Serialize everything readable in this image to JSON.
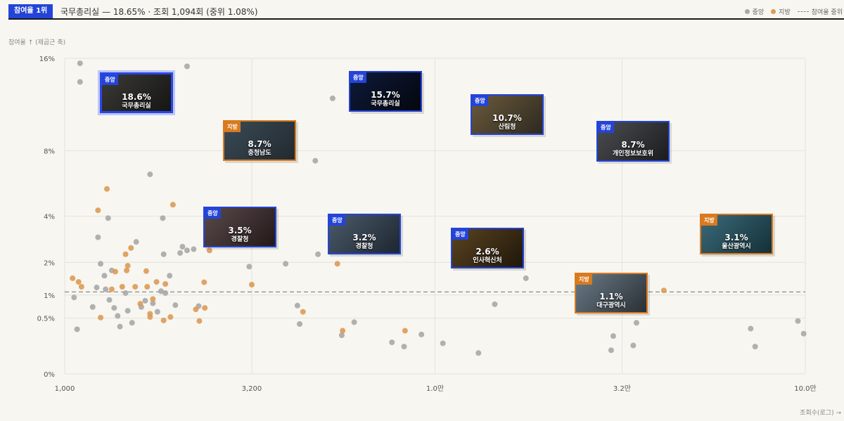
{
  "header": {
    "rank_badge": "참여율 1위",
    "rank_detail": "국무총리실 — 18.65% · 조회 1,094회 (중위 1.08%)"
  },
  "legend": {
    "central": "중앙",
    "regional": "지방",
    "median": "참여율 중위"
  },
  "colors": {
    "central": "#a9a9a9",
    "regional": "#dd9a55",
    "accent": "#2444d8",
    "regional_border": "#d97a1f"
  },
  "chart_data": {
    "type": "scatter",
    "xlabel": "조회수(로그) →",
    "ylabel": "참여율 ↑ (제곱근 축)",
    "x_scale": "log",
    "y_scale": "sqrt",
    "xlim": [
      1000,
      100000
    ],
    "ylim": [
      0,
      16
    ],
    "x_ticks": [
      {
        "value": 1000,
        "label": "1,000"
      },
      {
        "value": 3200,
        "label": "3,200"
      },
      {
        "value": 10000,
        "label": "1.0만"
      },
      {
        "value": 32000,
        "label": "3.2만"
      },
      {
        "value": 100000,
        "label": "10.0만"
      }
    ],
    "y_ticks": [
      {
        "value": 0,
        "label": "0%"
      },
      {
        "value": 0.5,
        "label": "0.5%"
      },
      {
        "value": 1,
        "label": "1%"
      },
      {
        "value": 2,
        "label": "2%"
      },
      {
        "value": 4,
        "label": "4%"
      },
      {
        "value": 8,
        "label": "8%"
      },
      {
        "value": 16,
        "label": "16%"
      }
    ],
    "grid": true,
    "median_line": 1.08,
    "series": [
      {
        "name": "중앙",
        "points": [
          [
            1100,
            15.5
          ],
          [
            1100,
            13.7
          ],
          [
            2140,
            15.2
          ],
          [
            1060,
            0.94
          ],
          [
            1080,
            0.32
          ],
          [
            1230,
            3.0
          ],
          [
            1310,
            3.9
          ],
          [
            1190,
            0.72
          ],
          [
            1220,
            1.2
          ],
          [
            1250,
            1.95
          ],
          [
            1280,
            1.55
          ],
          [
            1290,
            1.15
          ],
          [
            1320,
            0.88
          ],
          [
            1340,
            1.72
          ],
          [
            1360,
            0.7
          ],
          [
            1390,
            0.54
          ],
          [
            1410,
            0.36
          ],
          [
            1460,
            1.05
          ],
          [
            1480,
            0.64
          ],
          [
            1520,
            0.42
          ],
          [
            1560,
            2.8
          ],
          [
            1610,
            0.72
          ],
          [
            1650,
            0.86
          ],
          [
            1700,
            6.4
          ],
          [
            1730,
            0.8
          ],
          [
            1780,
            0.62
          ],
          [
            1820,
            1.1
          ],
          [
            1840,
            3.9
          ],
          [
            1850,
            2.3
          ],
          [
            1870,
            1.05
          ],
          [
            1920,
            1.55
          ],
          [
            1990,
            0.76
          ],
          [
            2050,
            2.35
          ],
          [
            2080,
            2.6
          ],
          [
            2140,
            2.45
          ],
          [
            2230,
            2.5
          ],
          [
            2300,
            0.74
          ],
          [
            3150,
            1.85
          ],
          [
            3950,
            1.95
          ],
          [
            4250,
            0.75
          ],
          [
            4310,
            0.4
          ],
          [
            4750,
            7.3
          ],
          [
            4830,
            2.3
          ],
          [
            5290,
            12.2
          ],
          [
            5600,
            0.24
          ],
          [
            6050,
            0.43
          ],
          [
            7650,
            0.16
          ],
          [
            8250,
            0.12
          ],
          [
            9190,
            0.25
          ],
          [
            10500,
            0.15
          ],
          [
            13100,
            0.07
          ],
          [
            14500,
            0.78
          ],
          [
            17600,
            1.47
          ],
          [
            29900,
            0.09
          ],
          [
            30300,
            0.23
          ],
          [
            34300,
            0.13
          ],
          [
            35000,
            0.42
          ],
          [
            71200,
            0.33
          ],
          [
            73200,
            0.12
          ],
          [
            95500,
            0.45
          ],
          [
            99000,
            0.26
          ]
        ]
      },
      {
        "name": "지방",
        "points": [
          [
            1050,
            1.47
          ],
          [
            1090,
            1.36
          ],
          [
            1110,
            1.22
          ],
          [
            1230,
            4.3
          ],
          [
            1250,
            0.51
          ],
          [
            1300,
            5.5
          ],
          [
            1340,
            1.15
          ],
          [
            1370,
            1.68
          ],
          [
            1430,
            1.22
          ],
          [
            1460,
            2.3
          ],
          [
            1470,
            1.72
          ],
          [
            1480,
            1.88
          ],
          [
            1510,
            2.55
          ],
          [
            1550,
            1.22
          ],
          [
            1600,
            0.79
          ],
          [
            1660,
            1.7
          ],
          [
            1670,
            1.22
          ],
          [
            1700,
            0.52
          ],
          [
            1700,
            0.58
          ],
          [
            1730,
            0.9
          ],
          [
            1770,
            1.36
          ],
          [
            1850,
            0.46
          ],
          [
            1870,
            1.3
          ],
          [
            1930,
            0.52
          ],
          [
            1960,
            4.6
          ],
          [
            2260,
            0.67
          ],
          [
            2310,
            0.45
          ],
          [
            2380,
            1.35
          ],
          [
            2390,
            0.7
          ],
          [
            2460,
            2.45
          ],
          [
            3200,
            1.28
          ],
          [
            4400,
            0.62
          ],
          [
            5450,
            1.95
          ],
          [
            5630,
            0.3
          ],
          [
            8300,
            0.3
          ],
          [
            41500,
            1.12
          ]
        ]
      }
    ],
    "highlights": [
      {
        "group": "중앙",
        "label": "국무총리실",
        "value": "18.6%",
        "top": true
      },
      {
        "group": "중앙",
        "label": "국무총리실",
        "value": "15.7%"
      },
      {
        "group": "중앙",
        "label": "산림청",
        "value": "10.7%"
      },
      {
        "group": "지방",
        "label": "충청남도",
        "value": "8.7%"
      },
      {
        "group": "중앙",
        "label": "개인정보보호위",
        "value": "8.7%"
      },
      {
        "group": "중앙",
        "label": "경찰청",
        "value": "3.5%"
      },
      {
        "group": "중앙",
        "label": "경찰청",
        "value": "3.2%"
      },
      {
        "group": "지방",
        "label": "울산광역시",
        "value": "3.1%"
      },
      {
        "group": "중앙",
        "label": "인사혁신처",
        "value": "2.6%"
      },
      {
        "group": "지방",
        "label": "대구광역시",
        "value": "1.1%"
      }
    ]
  }
}
